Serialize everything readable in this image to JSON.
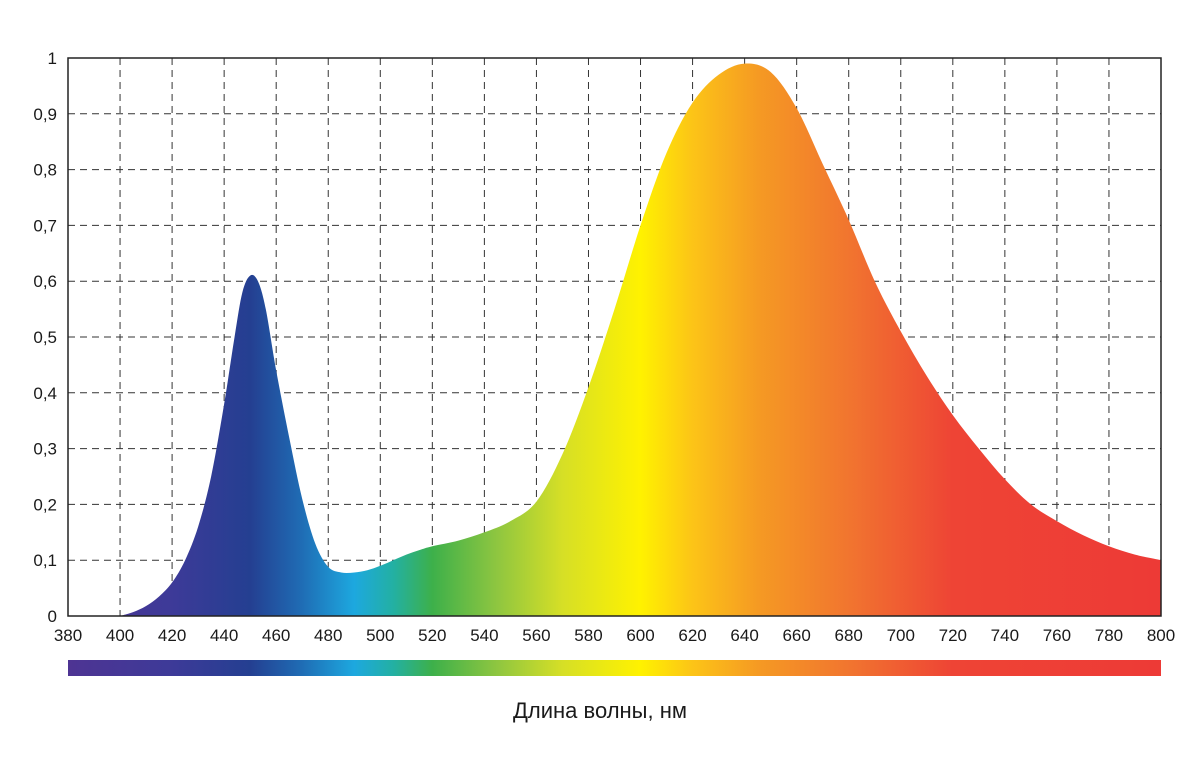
{
  "chart_data": {
    "type": "area",
    "xlabel": "Длина волны, нм",
    "ylabel": "",
    "xlim": [
      380,
      800
    ],
    "ylim": [
      0,
      1
    ],
    "grid": true,
    "x_ticks": [
      "380",
      "400",
      "420",
      "440",
      "460",
      "480",
      "500",
      "520",
      "540",
      "560",
      "580",
      "600",
      "620",
      "640",
      "660",
      "680",
      "700",
      "720",
      "740",
      "760",
      "780",
      "800"
    ],
    "y_ticks": [
      "0",
      "0,1",
      "0,2",
      "0,3",
      "0,4",
      "0,5",
      "0,6",
      "0,7",
      "0,8",
      "0,9",
      "1"
    ],
    "series": [
      {
        "x": [
          400,
          405,
          410,
          415,
          420,
          425,
          430,
          435,
          440,
          444,
          447,
          450,
          453,
          456,
          460,
          465,
          470,
          475,
          480,
          485,
          490,
          495,
          500,
          505,
          510,
          515,
          520,
          530,
          540,
          550,
          560,
          570,
          580,
          590,
          600,
          610,
          620,
          630,
          640,
          650,
          660,
          670,
          680,
          690,
          700,
          710,
          720,
          730,
          740,
          750,
          760,
          770,
          780,
          790,
          800
        ],
        "y": [
          0,
          0.007,
          0.018,
          0.035,
          0.06,
          0.1,
          0.16,
          0.25,
          0.38,
          0.5,
          0.58,
          0.61,
          0.6,
          0.55,
          0.44,
          0.32,
          0.21,
          0.13,
          0.088,
          0.078,
          0.078,
          0.082,
          0.09,
          0.1,
          0.11,
          0.118,
          0.125,
          0.135,
          0.15,
          0.17,
          0.205,
          0.29,
          0.41,
          0.55,
          0.7,
          0.83,
          0.92,
          0.97,
          0.99,
          0.975,
          0.91,
          0.81,
          0.71,
          0.6,
          0.51,
          0.43,
          0.36,
          0.3,
          0.245,
          0.2,
          0.17,
          0.145,
          0.125,
          0.11,
          0.1
        ]
      }
    ],
    "gradient": [
      {
        "nm": 380,
        "color": "#4e3493"
      },
      {
        "nm": 420,
        "color": "#3d3a98"
      },
      {
        "nm": 450,
        "color": "#243f91"
      },
      {
        "nm": 470,
        "color": "#1f6db5"
      },
      {
        "nm": 490,
        "color": "#1da8df"
      },
      {
        "nm": 505,
        "color": "#23b0a3"
      },
      {
        "nm": 520,
        "color": "#3db04a"
      },
      {
        "nm": 545,
        "color": "#8fc640"
      },
      {
        "nm": 570,
        "color": "#d6df26"
      },
      {
        "nm": 600,
        "color": "#fff200"
      },
      {
        "nm": 620,
        "color": "#fcc417"
      },
      {
        "nm": 645,
        "color": "#f59a23"
      },
      {
        "nm": 680,
        "color": "#f1752f"
      },
      {
        "nm": 720,
        "color": "#ee4435"
      },
      {
        "nm": 800,
        "color": "#ed3a36"
      }
    ]
  }
}
